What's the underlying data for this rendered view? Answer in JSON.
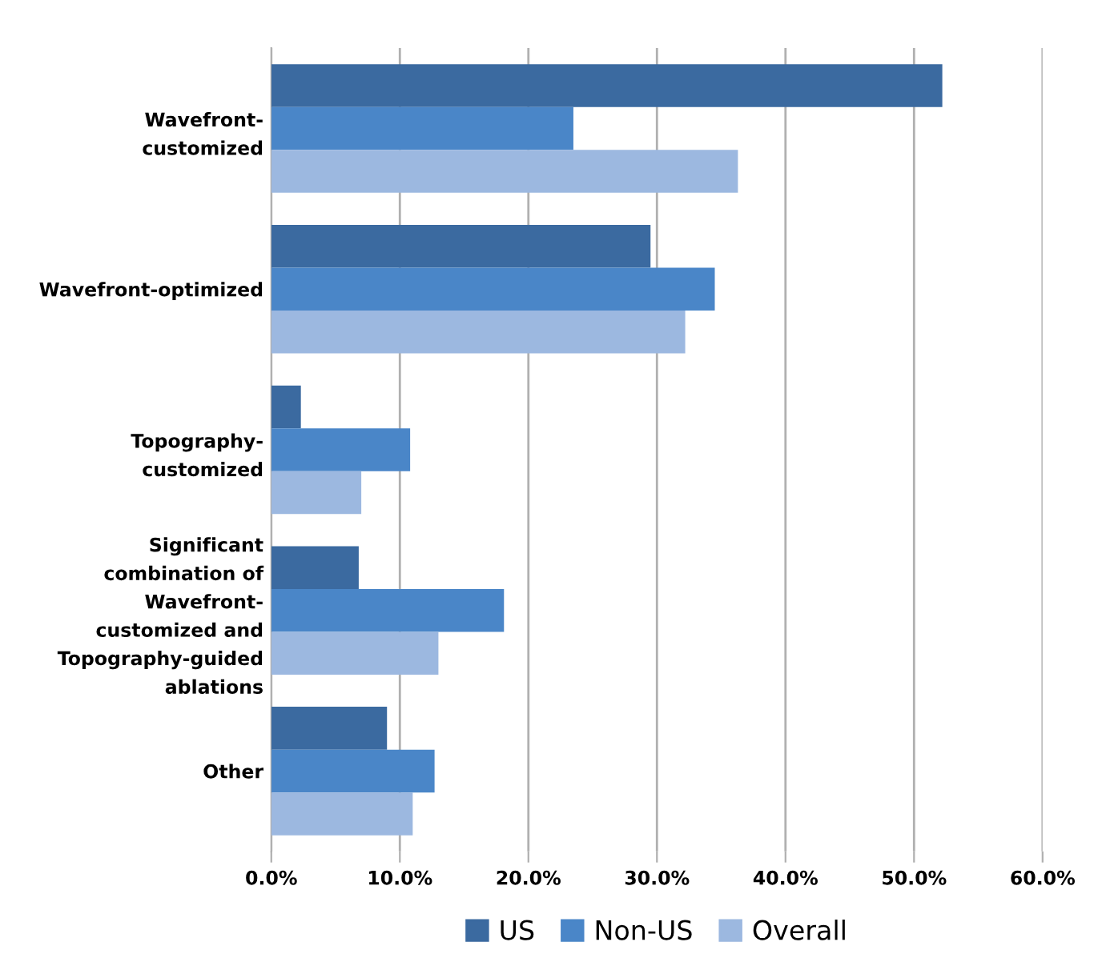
{
  "chart_data": {
    "type": "bar",
    "orientation": "horizontal",
    "categories": [
      "Wavefront-\ncustomized",
      "Wavefront-optimized",
      "Topography-\ncustomized",
      "Significant\ncombination of\nWavefront-\ncustomized and\nTopography-guided\nablations",
      "Other"
    ],
    "series": [
      {
        "name": "US",
        "color": "#3b6aa0",
        "values": [
          52.2,
          29.5,
          2.3,
          6.8,
          9.0
        ]
      },
      {
        "name": "Non-US",
        "color": "#4a86c8",
        "values": [
          23.5,
          34.5,
          10.8,
          18.1,
          12.7
        ]
      },
      {
        "name": "Overall",
        "color": "#9cb8e0",
        "values": [
          36.3,
          32.2,
          7.0,
          13.0,
          11.0
        ]
      }
    ],
    "xlim": [
      0,
      60
    ],
    "xticks": [
      {
        "value": 0,
        "label": "0.0%"
      },
      {
        "value": 10,
        "label": "10.0%"
      },
      {
        "value": 20,
        "label": "20.0%"
      },
      {
        "value": 30,
        "label": "30.0%"
      },
      {
        "value": 40,
        "label": "40.0%"
      },
      {
        "value": 50,
        "label": "50.0%"
      },
      {
        "value": 60,
        "label": "60.0%"
      }
    ],
    "grid": "x",
    "legend": "bottom"
  }
}
